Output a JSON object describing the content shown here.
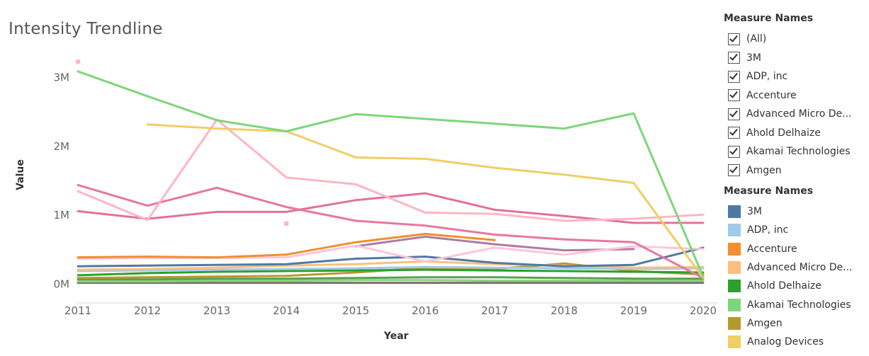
{
  "title": "Intensity Trendline",
  "filter": {
    "title": "Measure Names",
    "items": [
      "(All)",
      "3M",
      "ADP, inc",
      "Accenture",
      "Advanced Micro De...",
      "Ahold Delhaize",
      "Akamai Technologies",
      "Amgen"
    ]
  },
  "legend": {
    "title": "Measure Names",
    "items": [
      {
        "label": "3M",
        "color": "#4e79a7"
      },
      {
        "label": "ADP, inc",
        "color": "#a0cbe8"
      },
      {
        "label": "Accenture",
        "color": "#f28e2b"
      },
      {
        "label": "Advanced Micro De...",
        "color": "#ffbe7d"
      },
      {
        "label": "Ahold Delhaize",
        "color": "#2ca02c"
      },
      {
        "label": "Akamai Technologies",
        "color": "#7dd67a"
      },
      {
        "label": "Amgen",
        "color": "#b6992d"
      },
      {
        "label": "Analog Devices",
        "color": "#f1ce63"
      }
    ]
  },
  "chart_data": {
    "type": "line",
    "title": "Intensity Trendline",
    "xlabel": "Year",
    "ylabel": "Value",
    "x": [
      2011,
      2012,
      2013,
      2014,
      2015,
      2016,
      2017,
      2018,
      2019,
      2020
    ],
    "xlim": [
      2011,
      2020
    ],
    "ylim": [
      -200000,
      3500000
    ],
    "yticks": [
      0,
      1000000,
      2000000,
      3000000
    ],
    "ytick_labels": [
      "0M",
      "1M",
      "2M",
      "3M"
    ],
    "grid": false,
    "series": [
      {
        "color": "#7dd67a",
        "values": [
          3080000,
          2720000,
          2370000,
          2210000,
          2460000,
          2390000,
          2320000,
          2250000,
          2470000,
          100000
        ]
      },
      {
        "color": "#f1ce63",
        "values": [
          null,
          2310000,
          2250000,
          2210000,
          1830000,
          1810000,
          1680000,
          1580000,
          1460000,
          80000
        ]
      },
      {
        "color": "#ffb6c1",
        "values": [
          1340000,
          920000,
          2380000,
          1540000,
          1440000,
          1030000,
          1010000,
          910000,
          940000,
          1000000
        ]
      },
      {
        "color": "#e8779f",
        "values": [
          1430000,
          1130000,
          1390000,
          1110000,
          910000,
          840000,
          710000,
          640000,
          600000,
          80000
        ]
      },
      {
        "color": "#e3709b",
        "values": [
          1050000,
          940000,
          1040000,
          1040000,
          1210000,
          1310000,
          1070000,
          980000,
          880000,
          880000
        ]
      },
      {
        "color": "#f28e2b",
        "values": [
          380000,
          390000,
          380000,
          420000,
          600000,
          720000,
          630000,
          null,
          null,
          null
        ]
      },
      {
        "color": "#ffc6d9",
        "values": [
          360000,
          370000,
          370000,
          380000,
          550000,
          320000,
          520000,
          420000,
          540000,
          500000
        ]
      },
      {
        "color": "#b07aa1",
        "values": [
          null,
          null,
          null,
          null,
          540000,
          680000,
          570000,
          480000,
          500000,
          null
        ]
      },
      {
        "color": "#4e79a7",
        "values": [
          250000,
          260000,
          270000,
          280000,
          360000,
          390000,
          300000,
          250000,
          270000,
          520000
        ]
      },
      {
        "color": "#ffbe7d",
        "values": [
          200000,
          210000,
          230000,
          260000,
          280000,
          320000,
          280000,
          260000,
          230000,
          240000
        ]
      },
      {
        "color": "#a0cbe8",
        "values": [
          180000,
          190000,
          200000,
          210000,
          220000,
          240000,
          230000,
          220000,
          210000,
          220000
        ]
      },
      {
        "color": "#2ca02c",
        "values": [
          120000,
          150000,
          170000,
          180000,
          190000,
          200000,
          190000,
          180000,
          170000,
          160000
        ]
      },
      {
        "color": "#b6992d",
        "values": [
          80000,
          90000,
          100000,
          110000,
          160000,
          230000,
          210000,
          290000,
          180000,
          130000
        ]
      },
      {
        "color": "#59a14f",
        "values": [
          60000,
          60000,
          70000,
          70000,
          80000,
          90000,
          90000,
          80000,
          70000,
          70000
        ]
      },
      {
        "color": "#8cd17d",
        "values": [
          30000,
          30000,
          40000,
          40000,
          50000,
          50000,
          40000,
          40000,
          40000,
          40000
        ]
      },
      {
        "color": "#79706e",
        "values": [
          10000,
          10000,
          10000,
          10000,
          10000,
          10000,
          10000,
          10000,
          10000,
          10000
        ]
      }
    ],
    "points": [
      {
        "x": 2011,
        "y": 3220000,
        "color": "#ffb6c1"
      },
      {
        "x": 2014,
        "y": 870000,
        "color": "#ffb6c1"
      }
    ]
  }
}
